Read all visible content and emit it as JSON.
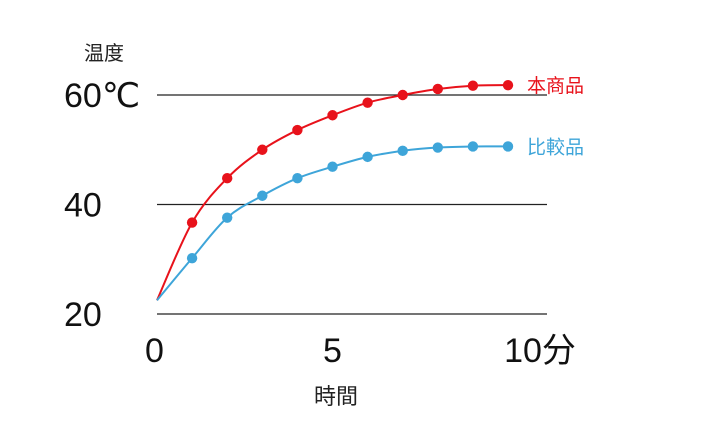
{
  "chart_data": {
    "type": "line",
    "ylabel": "温度",
    "xlabel": "時間",
    "y_ticks": [
      {
        "value": 60,
        "label": "60℃"
      },
      {
        "value": 40,
        "label": "40"
      },
      {
        "value": 20,
        "label": "20"
      }
    ],
    "x_ticks": [
      {
        "value": 0,
        "label": "0"
      },
      {
        "value": 5,
        "label": "5"
      },
      {
        "value": 10,
        "label": "10分"
      }
    ],
    "xlim": [
      0,
      10
    ],
    "ylim": [
      20,
      60
    ],
    "grid": "horizontal",
    "legend_placement": "right, at end of each line",
    "series": [
      {
        "name": "本商品",
        "color": "#e8121b",
        "start": {
          "x": 0,
          "y": 22.5
        },
        "points": [
          {
            "x": 1,
            "y": 36.7
          },
          {
            "x": 2,
            "y": 44.8
          },
          {
            "x": 3,
            "y": 50.0
          },
          {
            "x": 4,
            "y": 53.6
          },
          {
            "x": 5,
            "y": 56.3
          },
          {
            "x": 6,
            "y": 58.6
          },
          {
            "x": 7,
            "y": 60.0
          },
          {
            "x": 8,
            "y": 61.1
          },
          {
            "x": 9,
            "y": 61.7
          },
          {
            "x": 10,
            "y": 61.8
          }
        ]
      },
      {
        "name": "比較品",
        "color": "#3ea5d9",
        "start": {
          "x": 0,
          "y": 22.5
        },
        "points": [
          {
            "x": 1,
            "y": 30.2
          },
          {
            "x": 2,
            "y": 37.6
          },
          {
            "x": 3,
            "y": 41.6
          },
          {
            "x": 4,
            "y": 44.8
          },
          {
            "x": 5,
            "y": 46.9
          },
          {
            "x": 6,
            "y": 48.7
          },
          {
            "x": 7,
            "y": 49.8
          },
          {
            "x": 8,
            "y": 50.4
          },
          {
            "x": 9,
            "y": 50.6
          },
          {
            "x": 10,
            "y": 50.6
          }
        ]
      }
    ]
  }
}
